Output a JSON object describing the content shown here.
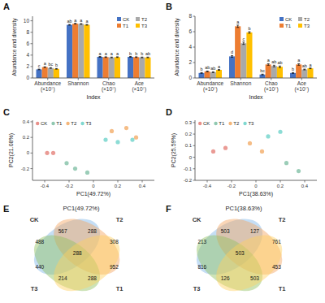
{
  "chart_data": [
    {
      "type": "bar",
      "title": "A",
      "categories": [
        "Abundance\n(×10⁷)",
        "Shannon",
        "Chao\n(×10⁷)",
        "Ace\n(×10⁷)"
      ],
      "series": [
        {
          "name": "CK",
          "color": "#4472C4",
          "values": [
            1.5,
            9.3,
            3.7,
            3.7
          ],
          "errors": [
            0.06,
            0.06,
            0.06,
            0.06
          ],
          "annotations": [
            "c",
            "ab",
            "a",
            "b"
          ]
        },
        {
          "name": "T1",
          "color": "#ED7D31",
          "values": [
            1.9,
            9.5,
            3.65,
            3.65
          ],
          "errors": [
            0.06,
            0.06,
            0.06,
            0.06
          ],
          "annotations": [
            "a",
            "a",
            "a",
            "b"
          ]
        },
        {
          "name": "T2",
          "color": "#A9A9A9",
          "values": [
            1.75,
            9.45,
            3.6,
            3.6
          ],
          "errors": [
            0.06,
            0.06,
            0.06,
            0.06
          ],
          "annotations": [
            "bc",
            "a",
            "a",
            "b"
          ]
        },
        {
          "name": "T3",
          "color": "#FFC000",
          "values": [
            1.6,
            9.3,
            3.65,
            3.6
          ],
          "errors": [
            0.06,
            0.06,
            0.06,
            0.06
          ],
          "annotations": [
            "b",
            "a",
            "a",
            "ab"
          ]
        }
      ],
      "xlabel": "Index",
      "ylabel": "Abundance and diversity",
      "ylim": [
        0,
        10.8
      ],
      "yticks": [
        0,
        2,
        4,
        6,
        8,
        10
      ],
      "legend": "upper right",
      "grid": false
    },
    {
      "type": "bar",
      "title": "B",
      "categories": [
        "Abundance\n(×10⁷)",
        "Shannon",
        "Chao\n(×10⁷)",
        "Ace\n(×10⁷)"
      ],
      "series": [
        {
          "name": "CK",
          "color": "#4472C4",
          "values": [
            0.65,
            2.8,
            0.45,
            0.65
          ],
          "errors": [
            0.05,
            0.1,
            0.05,
            0.05
          ],
          "annotations": [
            "b",
            "d",
            "bc",
            "b"
          ]
        },
        {
          "name": "T1",
          "color": "#ED7D31",
          "values": [
            0.85,
            6.7,
            1.75,
            1.75
          ],
          "errors": [
            0.05,
            0.15,
            0.1,
            0.1
          ],
          "annotations": [
            "ab",
            "a",
            "a",
            "a"
          ]
        },
        {
          "name": "T2",
          "color": "#A9A9A9",
          "values": [
            0.75,
            4.5,
            1.55,
            1.1
          ],
          "errors": [
            0.05,
            0.15,
            0.1,
            0.05
          ],
          "annotations": [
            "ab",
            "c",
            "ab",
            "ab"
          ]
        },
        {
          "name": "T3",
          "color": "#FFC000",
          "values": [
            1.05,
            5.9,
            1.45,
            1.25
          ],
          "errors": [
            0.05,
            0.1,
            0.1,
            0.05
          ],
          "annotations": [
            "a",
            "b",
            "ab",
            "a"
          ]
        }
      ],
      "xlabel": "Index",
      "ylabel": "Abundance and diversity",
      "ylim": [
        0,
        8.0
      ],
      "yticks": [
        0,
        2,
        4,
        6,
        8
      ],
      "legend": "upper right",
      "grid": false
    },
    {
      "type": "scatter",
      "title": "C",
      "xlabel": "PC1(49.72%)",
      "ylabel": "PC2(21.08%)",
      "series": [
        {
          "name": "CK",
          "color": "#E8908A",
          "x": [
            -0.38,
            -0.33
          ],
          "values": [
            0.0,
            0.0
          ]
        },
        {
          "name": "T1",
          "color": "#90C8B0",
          "x": [
            -0.22,
            -0.15,
            -0.05
          ],
          "values": [
            -0.13,
            -0.2,
            -0.25
          ]
        },
        {
          "name": "T2",
          "color": "#F4B67A",
          "x": [
            0.15,
            0.27,
            0.35
          ],
          "values": [
            0.28,
            0.32,
            0.2
          ]
        },
        {
          "name": "T3",
          "color": "#80D8D0",
          "x": [
            0.1,
            0.2,
            0.32
          ],
          "values": [
            0.17,
            0.14,
            0.17
          ]
        }
      ],
      "xlim": [
        -0.5,
        0.5
      ],
      "ylim": [
        -0.35,
        0.42
      ],
      "xticks": [
        -0.4,
        -0.2,
        0,
        0.2,
        0.4
      ],
      "yticks": [
        -0.2,
        0,
        0.2,
        0.4
      ],
      "legend": "upper left",
      "grid": false
    },
    {
      "type": "scatter",
      "title": "D",
      "xlabel": "PC1(38.63%)",
      "ylabel": "PC2(25.59%)",
      "series": [
        {
          "name": "CK",
          "color": "#E8908A",
          "x": [
            -0.35,
            -0.25
          ],
          "values": [
            0.05,
            0.08
          ]
        },
        {
          "name": "T1",
          "color": "#90C8B0",
          "x": [
            0.25,
            0.35
          ],
          "values": [
            -0.05,
            -0.12
          ]
        },
        {
          "name": "T2",
          "color": "#F4B67A",
          "x": [
            -0.05,
            0.05
          ],
          "values": [
            0.12,
            0.05
          ]
        },
        {
          "name": "T3",
          "color": "#80D8D0",
          "x": [
            0.1,
            0.2
          ],
          "values": [
            0.18,
            0.22
          ]
        }
      ],
      "xlim": [
        -0.5,
        0.5
      ],
      "ylim": [
        -0.2,
        0.32
      ],
      "xticks": [
        -0.4,
        -0.2,
        0,
        0.2,
        0.4
      ],
      "yticks": [
        -0.2,
        -0.1,
        0,
        0.1,
        0.2,
        0.3
      ],
      "legend": "upper left",
      "grid": false
    },
    {
      "type": "venn",
      "title": "E",
      "subtitle": "PC1(49.72%)",
      "series": [
        {
          "name": "CK",
          "color": "#7EB6E8"
        },
        {
          "name": "T2",
          "color": "#F4A460"
        },
        {
          "name": "T3",
          "color": "#90C060"
        },
        {
          "name": "T1",
          "color": "#FFD060"
        }
      ],
      "values": [
        488,
        308,
        440,
        952,
        567,
        288,
        214,
        288,
        288
      ],
      "data_labels": true
    },
    {
      "type": "venn",
      "title": "F",
      "subtitle": "PC1(38.63%)",
      "series": [
        {
          "name": "CK",
          "color": "#7EB6E8"
        },
        {
          "name": "T2",
          "color": "#F4A460"
        },
        {
          "name": "T3",
          "color": "#90C060"
        },
        {
          "name": "T1",
          "color": "#FFD060"
        }
      ],
      "values": [
        213,
        761,
        816,
        453,
        503,
        127,
        126,
        503,
        503
      ],
      "data_labels": true
    }
  ]
}
